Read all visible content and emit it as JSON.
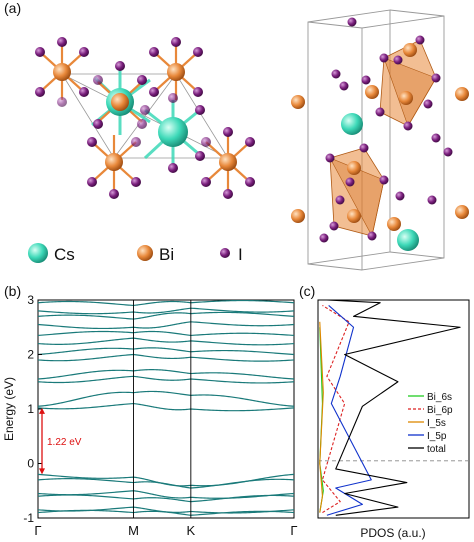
{
  "panel_labels": {
    "a": "(a)",
    "b": "(b)",
    "c": "(c)"
  },
  "atom_legend": [
    {
      "symbol": "Cs",
      "color": "#3dd9b8"
    },
    {
      "symbol": "Bi",
      "color": "#e8883a"
    },
    {
      "symbol": "I",
      "color": "#7a1f7d"
    }
  ],
  "colors": {
    "band": "#1a7a7a",
    "gap_arrow": "#dd1111",
    "polyhedra": "#e8883a"
  },
  "chart_data": [
    {
      "type": "line",
      "panel": "(b)",
      "ylabel": "Energy (eV)",
      "ylim": [
        -1,
        3
      ],
      "yticks": [
        "-1",
        "0",
        "1",
        "2",
        "3"
      ],
      "x_ticks": [
        "Γ",
        "M",
        "K",
        "Γ"
      ],
      "x_tick_positions": [
        0,
        0.5,
        0.8,
        1.34
      ],
      "band_gap_label": "1.22 eV",
      "vbm": -0.2,
      "cbm": 1.02,
      "bands": [
        [
          -0.2,
          -0.25,
          -0.4,
          -0.2
        ],
        [
          -0.3,
          -0.35,
          -0.45,
          -0.3
        ],
        [
          -0.55,
          -0.5,
          -0.62,
          -0.55
        ],
        [
          -0.6,
          -0.65,
          -0.7,
          -0.6
        ],
        [
          -0.85,
          -0.8,
          -0.88,
          -0.85
        ],
        [
          -0.9,
          -0.9,
          -0.95,
          -0.9
        ],
        [
          1.02,
          1.1,
          1.0,
          1.02
        ],
        [
          1.05,
          1.3,
          1.25,
          1.05
        ],
        [
          1.5,
          1.6,
          1.55,
          1.5
        ],
        [
          1.55,
          1.7,
          1.65,
          1.55
        ],
        [
          1.9,
          2.0,
          1.95,
          1.9
        ],
        [
          2.0,
          2.1,
          2.05,
          2.0
        ],
        [
          2.2,
          2.3,
          2.25,
          2.2
        ],
        [
          2.35,
          2.4,
          2.35,
          2.35
        ],
        [
          2.55,
          2.5,
          2.6,
          2.55
        ],
        [
          2.7,
          2.65,
          2.75,
          2.7
        ],
        [
          2.8,
          2.78,
          2.85,
          2.8
        ],
        [
          2.95,
          2.9,
          2.95,
          2.95
        ]
      ]
    },
    {
      "type": "line",
      "panel": "(c)",
      "xlabel": "PDOS (a.u.)",
      "ylim": [
        -1,
        3
      ],
      "series": [
        {
          "name": "Bi_6s",
          "color": "#22cc22",
          "dash": "",
          "x": [
            0.02,
            0.06,
            0.02,
            0.05,
            0.02
          ],
          "y": [
            -0.9,
            -0.5,
            0,
            1.1,
            2.5
          ]
        },
        {
          "name": "Bi_6p",
          "color": "#dd2222",
          "dash": "3,2",
          "x": [
            0.05,
            0.25,
            0.05,
            0.3,
            0.1,
            0.35,
            0.05
          ],
          "y": [
            -0.9,
            -0.7,
            -0.3,
            1.1,
            1.6,
            2.6,
            2.9
          ]
        },
        {
          "name": "I_5s",
          "color": "#dd8800",
          "dash": "",
          "x": [
            0.02,
            0.05,
            0.02,
            0.06,
            0.02
          ],
          "y": [
            -0.9,
            -0.6,
            0,
            1.3,
            2.6
          ]
        },
        {
          "name": "I_5p",
          "color": "#1133cc",
          "dash": "",
          "x": [
            0.1,
            0.5,
            0.2,
            0.6,
            0.15,
            0.25,
            0.4,
            0.12
          ],
          "y": [
            -0.95,
            -0.75,
            -0.45,
            -0.3,
            1.1,
            1.6,
            2.5,
            2.9
          ]
        },
        {
          "name": "total",
          "color": "#000000",
          "dash": "",
          "x": [
            0.2,
            0.9,
            0.3,
            1.0,
            0.2,
            0.5,
            0.9,
            0.3,
            1.6,
            0.4,
            0.7,
            0.1
          ],
          "y": [
            -0.95,
            -0.8,
            -0.55,
            -0.35,
            -0.1,
            1.05,
            1.5,
            2.0,
            2.5,
            2.7,
            2.95,
            3.0
          ]
        }
      ]
    }
  ]
}
